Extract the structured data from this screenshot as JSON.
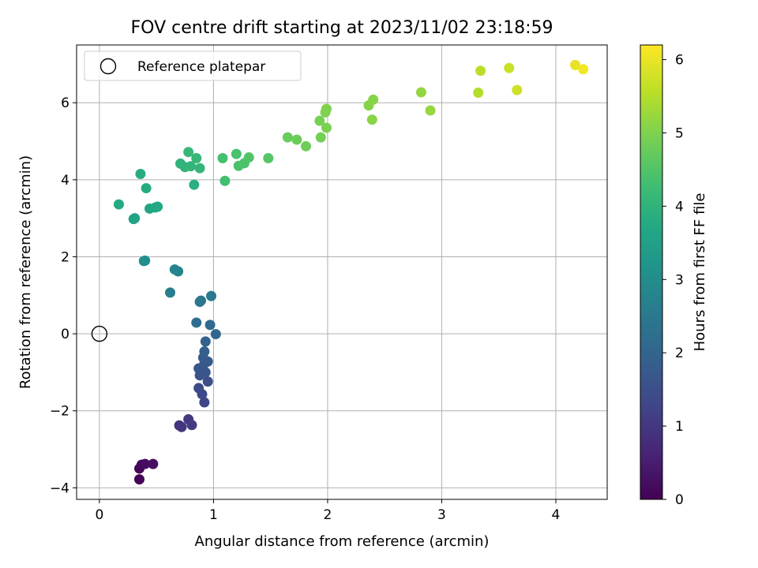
{
  "chart_data": {
    "type": "scatter",
    "title": "FOV centre drift starting at 2023/11/02 23:18:59",
    "xlabel": "Angular distance from reference (arcmin)",
    "ylabel": "Rotation from reference (arcmin)",
    "xlim": [
      -0.2,
      4.45
    ],
    "ylim": [
      -4.3,
      7.5
    ],
    "xticks": [
      0,
      1,
      2,
      3,
      4
    ],
    "yticks": [
      -4,
      -2,
      0,
      2,
      4,
      6
    ],
    "grid": true,
    "legend": {
      "placement": "upper-left",
      "entries": [
        "Reference platepar"
      ]
    },
    "reference_point": {
      "x": 0,
      "y": 0,
      "label": "Reference platepar"
    },
    "colorbar": {
      "label": "Hours from first FF file",
      "colormap": "viridis",
      "range": [
        0,
        6.2
      ],
      "ticks": [
        0,
        1,
        2,
        3,
        4,
        5,
        6
      ]
    },
    "series": [
      {
        "points": [
          {
            "x": 0.35,
            "y": -3.78,
            "t": 0.05
          },
          {
            "x": 0.35,
            "y": -3.5,
            "t": 0.1
          },
          {
            "x": 0.37,
            "y": -3.4,
            "t": 0.15
          },
          {
            "x": 0.4,
            "y": -3.38,
            "t": 0.2
          },
          {
            "x": 0.47,
            "y": -3.38,
            "t": 0.25
          },
          {
            "x": 0.7,
            "y": -2.38,
            "t": 0.9
          },
          {
            "x": 0.72,
            "y": -2.42,
            "t": 0.95
          },
          {
            "x": 0.78,
            "y": -2.22,
            "t": 1.0
          },
          {
            "x": 0.81,
            "y": -2.37,
            "t": 1.05
          },
          {
            "x": 0.92,
            "y": -1.78,
            "t": 1.3
          },
          {
            "x": 0.9,
            "y": -1.57,
            "t": 1.35
          },
          {
            "x": 0.87,
            "y": -1.41,
            "t": 1.4
          },
          {
            "x": 0.95,
            "y": -1.24,
            "t": 1.5
          },
          {
            "x": 0.88,
            "y": -1.08,
            "t": 1.6
          },
          {
            "x": 0.93,
            "y": -1.0,
            "t": 1.62
          },
          {
            "x": 0.87,
            "y": -0.9,
            "t": 1.65
          },
          {
            "x": 0.92,
            "y": -0.77,
            "t": 1.7
          },
          {
            "x": 0.95,
            "y": -0.72,
            "t": 1.75
          },
          {
            "x": 0.91,
            "y": -0.62,
            "t": 1.78
          },
          {
            "x": 0.92,
            "y": -0.46,
            "t": 1.85
          },
          {
            "x": 0.93,
            "y": -0.2,
            "t": 1.92
          },
          {
            "x": 1.02,
            "y": -0.01,
            "t": 2.05
          },
          {
            "x": 0.97,
            "y": 0.23,
            "t": 2.15
          },
          {
            "x": 0.85,
            "y": 0.29,
            "t": 2.2
          },
          {
            "x": 0.88,
            "y": 0.83,
            "t": 2.4
          },
          {
            "x": 0.89,
            "y": 0.86,
            "t": 2.45
          },
          {
            "x": 0.98,
            "y": 0.98,
            "t": 2.5
          },
          {
            "x": 0.62,
            "y": 1.07,
            "t": 2.6
          },
          {
            "x": 0.69,
            "y": 1.62,
            "t": 2.75
          },
          {
            "x": 0.66,
            "y": 1.67,
            "t": 2.8
          },
          {
            "x": 0.39,
            "y": 1.89,
            "t": 3.0
          },
          {
            "x": 0.4,
            "y": 1.9,
            "t": 3.05
          },
          {
            "x": 0.3,
            "y": 2.98,
            "t": 3.5
          },
          {
            "x": 0.31,
            "y": 3.0,
            "t": 3.55
          },
          {
            "x": 0.44,
            "y": 3.25,
            "t": 3.65
          },
          {
            "x": 0.49,
            "y": 3.28,
            "t": 3.7
          },
          {
            "x": 0.51,
            "y": 3.3,
            "t": 3.72
          },
          {
            "x": 0.17,
            "y": 3.36,
            "t": 3.75
          },
          {
            "x": 0.41,
            "y": 3.78,
            "t": 3.8
          },
          {
            "x": 0.36,
            "y": 4.15,
            "t": 3.85
          },
          {
            "x": 0.83,
            "y": 3.87,
            "t": 3.9
          },
          {
            "x": 0.71,
            "y": 4.42,
            "t": 4.0
          },
          {
            "x": 0.75,
            "y": 4.33,
            "t": 4.02
          },
          {
            "x": 0.8,
            "y": 4.35,
            "t": 4.05
          },
          {
            "x": 0.88,
            "y": 4.3,
            "t": 4.07
          },
          {
            "x": 0.85,
            "y": 4.56,
            "t": 4.1
          },
          {
            "x": 0.78,
            "y": 4.72,
            "t": 4.12
          },
          {
            "x": 1.1,
            "y": 3.97,
            "t": 4.3
          },
          {
            "x": 1.08,
            "y": 4.56,
            "t": 4.35
          },
          {
            "x": 1.2,
            "y": 4.67,
            "t": 4.4
          },
          {
            "x": 1.22,
            "y": 4.36,
            "t": 4.42
          },
          {
            "x": 1.27,
            "y": 4.43,
            "t": 4.45
          },
          {
            "x": 1.31,
            "y": 4.58,
            "t": 4.5
          },
          {
            "x": 1.48,
            "y": 4.56,
            "t": 4.55
          },
          {
            "x": 1.65,
            "y": 5.1,
            "t": 4.75
          },
          {
            "x": 1.73,
            "y": 5.04,
            "t": 4.8
          },
          {
            "x": 1.81,
            "y": 4.87,
            "t": 4.82
          },
          {
            "x": 1.94,
            "y": 5.1,
            "t": 4.88
          },
          {
            "x": 1.93,
            "y": 5.53,
            "t": 4.92
          },
          {
            "x": 1.99,
            "y": 5.35,
            "t": 4.95
          },
          {
            "x": 1.98,
            "y": 5.75,
            "t": 4.98
          },
          {
            "x": 1.99,
            "y": 5.84,
            "t": 5.0
          },
          {
            "x": 2.36,
            "y": 5.93,
            "t": 5.05
          },
          {
            "x": 2.4,
            "y": 6.08,
            "t": 5.08
          },
          {
            "x": 2.39,
            "y": 5.56,
            "t": 5.1
          },
          {
            "x": 2.82,
            "y": 6.27,
            "t": 5.2
          },
          {
            "x": 2.9,
            "y": 5.8,
            "t": 5.22
          },
          {
            "x": 3.32,
            "y": 6.26,
            "t": 5.5
          },
          {
            "x": 3.34,
            "y": 6.83,
            "t": 5.55
          },
          {
            "x": 3.59,
            "y": 6.9,
            "t": 5.7
          },
          {
            "x": 3.66,
            "y": 6.33,
            "t": 5.75
          },
          {
            "x": 4.17,
            "y": 6.98,
            "t": 6.0
          },
          {
            "x": 4.24,
            "y": 6.87,
            "t": 6.1
          }
        ]
      }
    ]
  }
}
